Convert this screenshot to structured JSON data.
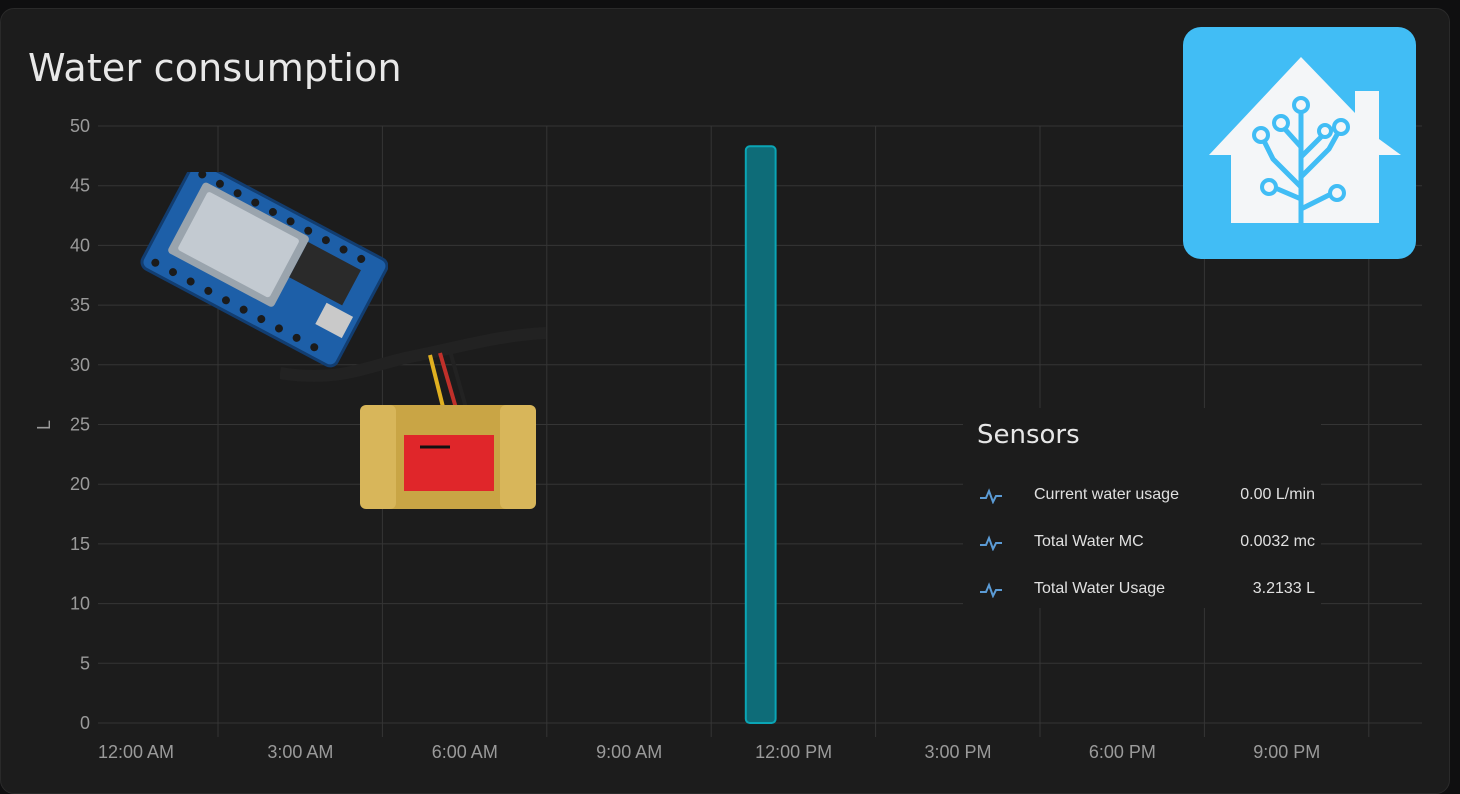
{
  "card": {
    "title": "Water consumption"
  },
  "chart_data": {
    "type": "bar",
    "title": "Water consumption",
    "xlabel": "",
    "ylabel": "L",
    "ylim": [
      0,
      50
    ],
    "yticks": [
      "0",
      "5",
      "10",
      "15",
      "20",
      "25",
      "30",
      "35",
      "40",
      "45",
      "50"
    ],
    "xticks": [
      "12:00 AM",
      "3:00 AM",
      "6:00 AM",
      "9:00 AM",
      "12:00 PM",
      "3:00 PM",
      "6:00 PM",
      "9:00 PM"
    ],
    "bars": [
      {
        "time": "11:00 AM",
        "value": 48.3
      }
    ],
    "grid": true,
    "bar_color": "#0aa5b5"
  },
  "sensors": {
    "title": "Sensors",
    "items": [
      {
        "icon": "pulse-icon",
        "name": "Current water usage",
        "value": "0.00 L/min"
      },
      {
        "icon": "pulse-icon",
        "name": "Total Water MC",
        "value": "0.0032 mc"
      },
      {
        "icon": "pulse-icon",
        "name": "Total Water Usage",
        "value": "3.2133 L"
      }
    ]
  },
  "logo": {
    "icon": "home-assistant-logo",
    "color": "#41bdf5"
  }
}
